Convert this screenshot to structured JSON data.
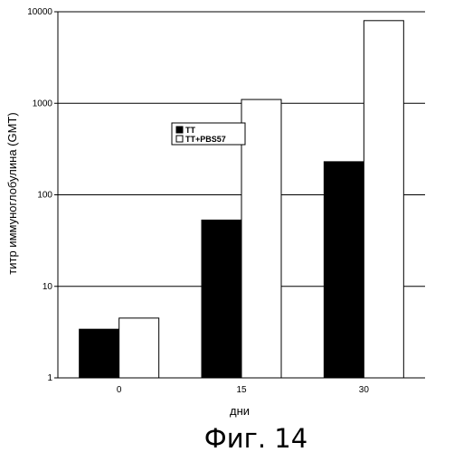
{
  "chart_data": {
    "type": "bar",
    "scale": "log",
    "categories": [
      "0",
      "15",
      "30"
    ],
    "series": [
      {
        "name": "TT",
        "color": "#000000",
        "values": [
          3.4,
          53,
          230
        ]
      },
      {
        "name": "TT+PBS57",
        "color": "#ffffff",
        "values": [
          4.5,
          1100,
          8000
        ]
      }
    ],
    "ylim": [
      1,
      10000
    ],
    "y_ticks": [
      1,
      10,
      100,
      1000,
      10000
    ],
    "y_tick_labels": [
      "1",
      "10",
      "100",
      "1000",
      "10000"
    ],
    "ylabel": "титр иммуноглобулина (GMT)",
    "xlabel": "дни",
    "grid": true,
    "legend_position": "upper-center"
  },
  "caption": "Фиг. 14"
}
